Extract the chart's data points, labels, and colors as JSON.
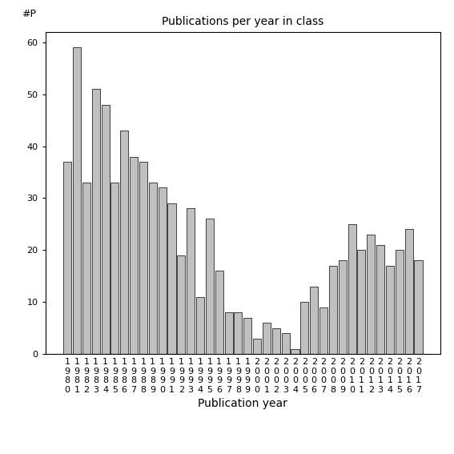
{
  "title": "Publications per year in class",
  "xlabel": "Publication year",
  "ylabel": "#P",
  "years": [
    "1980",
    "1981",
    "1982",
    "1983",
    "1984",
    "1985",
    "1986",
    "1987",
    "1988",
    "1989",
    "1990",
    "1991",
    "1992",
    "1993",
    "1994",
    "1995",
    "1996",
    "1997",
    "1998",
    "1999",
    "2000",
    "2001",
    "2002",
    "2003",
    "2004",
    "2005",
    "2006",
    "2007",
    "2008",
    "2009",
    "2010",
    "2011",
    "2012",
    "2013",
    "2014",
    "2015",
    "2016",
    "2017"
  ],
  "values": [
    37,
    59,
    33,
    51,
    48,
    33,
    43,
    38,
    37,
    33,
    32,
    29,
    19,
    28,
    11,
    26,
    16,
    8,
    8,
    7,
    3,
    6,
    5,
    4,
    1,
    10,
    13,
    9,
    17,
    18,
    25,
    20,
    23,
    21,
    17,
    20,
    24,
    18
  ],
  "bar_color": "#c0c0c0",
  "bar_edgecolor": "#000000",
  "ylim": [
    0,
    62
  ],
  "yticks": [
    0,
    10,
    20,
    30,
    40,
    50,
    60
  ],
  "background_color": "#ffffff",
  "title_fontsize": 10,
  "xlabel_fontsize": 10,
  "tick_fontsize": 8
}
